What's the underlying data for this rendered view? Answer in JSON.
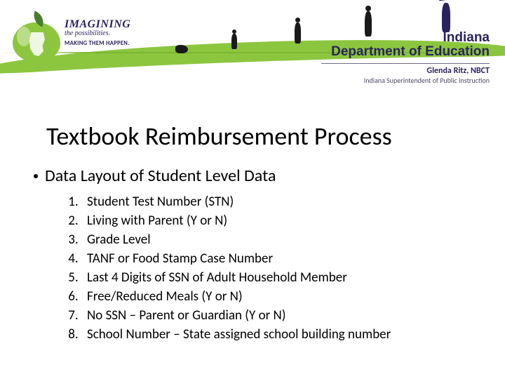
{
  "colors": {
    "swoosh": "#8cc63f",
    "navy": "#29235c",
    "text": "#000000",
    "background": "#ffffff"
  },
  "header": {
    "logo": {
      "line1": "IMAGINING",
      "line2": "the possibilities.",
      "line3": "MAKING THEM HAPPEN."
    },
    "department": {
      "name_line1": "Indiana",
      "name_line2": "Department of Education",
      "person": "Glenda Ritz, NBCT",
      "role": "Indiana Superintendent of Public Instruction"
    }
  },
  "slide": {
    "title": "Textbook Reimbursement Process",
    "bullet": "Data Layout of Student Level Data",
    "list": [
      "Student Test Number (STN)",
      "Living with Parent (Y or N)",
      "Grade Level",
      "TANF or Food Stamp Case Number",
      "Last 4 Digits of SSN of Adult Household Member",
      "Free/Reduced Meals (Y or N)",
      "No SSN – Parent or Guardian (Y or N)",
      "School Number – State assigned school building number"
    ]
  }
}
